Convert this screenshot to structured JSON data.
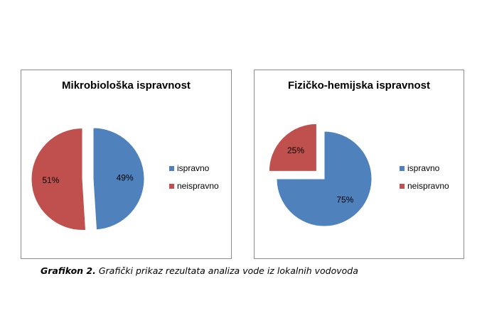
{
  "chart_data": [
    {
      "type": "pie",
      "title": "Mikrobiološka ispravnost",
      "slices": [
        {
          "label": "ispravno",
          "value": 49,
          "display": "49%",
          "color": "#4f81bd",
          "exploded": false
        },
        {
          "label": "neispravno",
          "value": 51,
          "display": "51%",
          "color": "#c0504d",
          "exploded": true
        }
      ],
      "legend_position": "right"
    },
    {
      "type": "pie",
      "title": "Fizičko-hemijska ispravnost",
      "slices": [
        {
          "label": "ispravno",
          "value": 75,
          "display": "75%",
          "color": "#4f81bd",
          "exploded": false
        },
        {
          "label": "neispravno",
          "value": 25,
          "display": "25%",
          "color": "#c0504d",
          "exploded": true
        }
      ],
      "legend_position": "right"
    }
  ],
  "caption": {
    "label": "Grafikon 2.",
    "text": " Grafički prikaz rezultata analiza vode iz lokalnih vodovoda"
  }
}
